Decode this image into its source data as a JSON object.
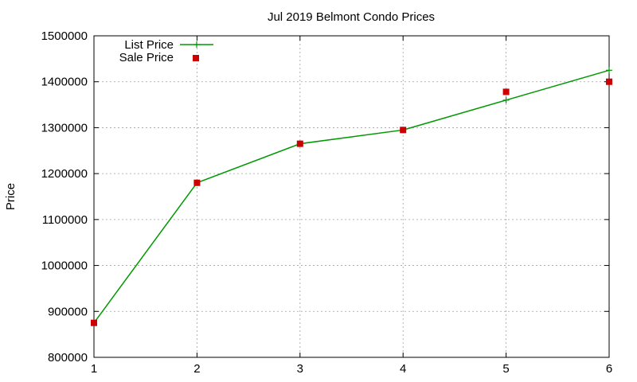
{
  "chart_data": {
    "type": "line",
    "title": "Jul 2019 Belmont Condo Prices",
    "xlabel": "",
    "ylabel": "Price",
    "x": [
      1,
      2,
      3,
      4,
      5,
      6
    ],
    "xlim": [
      1,
      6
    ],
    "ylim": [
      800000,
      1500000
    ],
    "xticks": [
      "1",
      "2",
      "3",
      "4",
      "5",
      "6"
    ],
    "yticks": [
      "800000",
      "900000",
      "1000000",
      "1100000",
      "1200000",
      "1300000",
      "1400000",
      "1500000"
    ],
    "grid": true,
    "legend_position": "top-left",
    "series": [
      {
        "name": "List Price",
        "style": "line-with-plus-markers",
        "color": "#009900",
        "values": [
          875000,
          1180000,
          1265000,
          1295000,
          1360000,
          1425000
        ]
      },
      {
        "name": "Sale Price",
        "style": "square-markers",
        "color": "#cc0000",
        "values": [
          875000,
          1180000,
          1265000,
          1295000,
          1378000,
          1400000
        ]
      }
    ]
  }
}
